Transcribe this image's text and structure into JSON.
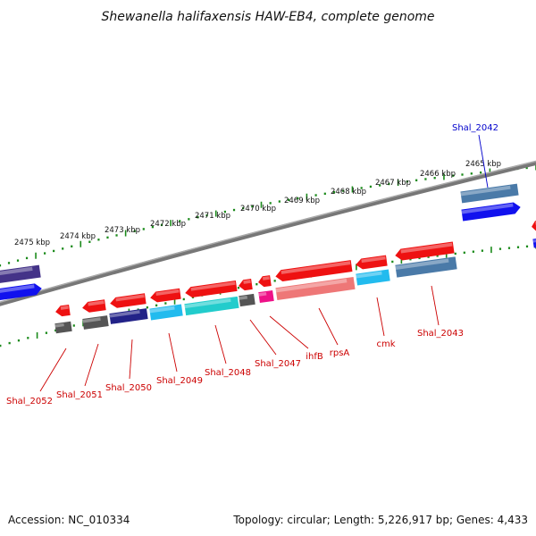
{
  "title": "Shewanella halifaxensis HAW-EB4, complete genome",
  "footer": {
    "accession": "Accession: NC_010334",
    "summary": "Topology: circular; Length: 5,226,917 bp; Genes: 4,433"
  },
  "colors": {
    "red": "#ee1111",
    "blue": "#1111ee",
    "steelblue": "#4a7aa8",
    "darkblue": "#222288",
    "gray": "#555555",
    "cyan": "#22bbee",
    "teal": "#22cccc",
    "magenta": "#ee1188",
    "salmon": "#ee7777",
    "purple": "#443388",
    "backbone": "#888888",
    "tick": "#1a8a1a",
    "red_label": "#cc0000",
    "blue_label": "#0000cc"
  },
  "kbp_labels": [
    "2475 kbp",
    "2474 kbp",
    "2473 kbp",
    "2472 kbp",
    "2471 kbp",
    "2470 kbp",
    "2469 kbp",
    "2468 kbp",
    "2467 kbp",
    "2466 kbp",
    "2465 kbp"
  ],
  "gene_labels": [
    {
      "name": "Shal_2052",
      "color": "red"
    },
    {
      "name": "Shal_2051",
      "color": "red"
    },
    {
      "name": "Shal_2050",
      "color": "red"
    },
    {
      "name": "Shal_2049",
      "color": "red"
    },
    {
      "name": "Shal_2048",
      "color": "red"
    },
    {
      "name": "Shal_2047",
      "color": "red"
    },
    {
      "name": "ihfB",
      "color": "red"
    },
    {
      "name": "rpsA",
      "color": "red"
    },
    {
      "name": "cmk",
      "color": "red"
    },
    {
      "name": "Shal_2043",
      "color": "red"
    },
    {
      "name": "Shal_2042",
      "color": "blue"
    }
  ]
}
